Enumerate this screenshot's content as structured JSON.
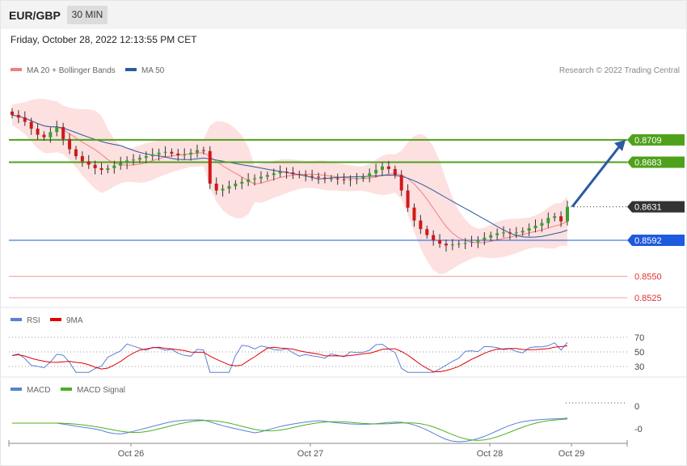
{
  "header": {
    "symbol": "EUR/GBP",
    "timeframe": "30 MIN"
  },
  "datetime": "Friday, October 28, 2022 12:13:55 PM CET",
  "legend_main": [
    {
      "label": "MA 20 + Bollinger Bands",
      "color": "#f08080"
    },
    {
      "label": "MA 50",
      "color": "#2c5aa0"
    }
  ],
  "copyright": "Research © 2022 Trading Central",
  "legend_rsi": [
    {
      "label": "RSI",
      "color": "#5b7fd6"
    },
    {
      "label": "9MA",
      "color": "#e00000"
    }
  ],
  "legend_macd": [
    {
      "label": "MACD",
      "color": "#5b7fd6"
    },
    {
      "label": "MACD Signal",
      "color": "#4caf20"
    }
  ],
  "chart_data": {
    "type": "candlestick",
    "price_range": [
      0.8525,
      0.873
    ],
    "current_price": "0.8631",
    "levels": [
      {
        "label": "0.8709",
        "value": 0.8709,
        "color": "#4fa11c",
        "style": "target"
      },
      {
        "label": "0.8683",
        "value": 0.8683,
        "color": "#4fa11c",
        "style": "resistance"
      },
      {
        "label": "0.8592",
        "value": 0.8592,
        "color": "#1e5adc",
        "style": "pivot"
      },
      {
        "label": "0.8550",
        "value": 0.855,
        "color": "#e03030",
        "style": "support"
      },
      {
        "label": "0.8525",
        "value": 0.8525,
        "color": "#e03030",
        "style": "support"
      }
    ],
    "x_ticks": [
      "Oct 26",
      "Oct 27",
      "Oct 28",
      "Oct 29"
    ],
    "close_path": [
      0.8738,
      0.8735,
      0.873,
      0.8722,
      0.8715,
      0.8712,
      0.8718,
      0.8724,
      0.871,
      0.8698,
      0.869,
      0.8684,
      0.868,
      0.8676,
      0.8674,
      0.8676,
      0.8679,
      0.8682,
      0.8685,
      0.8686,
      0.8688,
      0.869,
      0.8692,
      0.8694,
      0.8695,
      0.8693,
      0.8691,
      0.8692,
      0.8694,
      0.8697,
      0.8696,
      0.8658,
      0.865,
      0.8652,
      0.8655,
      0.8658,
      0.866,
      0.8663,
      0.8664,
      0.8666,
      0.8668,
      0.867,
      0.8672,
      0.8671,
      0.8669,
      0.8668,
      0.8667,
      0.8666,
      0.8665,
      0.8664,
      0.8664,
      0.8663,
      0.8662,
      0.8663,
      0.8664,
      0.8666,
      0.867,
      0.8674,
      0.8678,
      0.8675,
      0.8668,
      0.865,
      0.863,
      0.8615,
      0.8605,
      0.8598,
      0.8592,
      0.8588,
      0.8586,
      0.8587,
      0.8588,
      0.8589,
      0.859,
      0.8592,
      0.8595,
      0.8598,
      0.86,
      0.8601,
      0.86,
      0.8601,
      0.8603,
      0.8606,
      0.8609,
      0.8612,
      0.8618,
      0.862,
      0.8614,
      0.8631
    ],
    "rsi": {
      "levels": [
        70,
        50,
        30
      ]
    },
    "macd": {
      "levels": [
        "0",
        "-0"
      ]
    }
  }
}
